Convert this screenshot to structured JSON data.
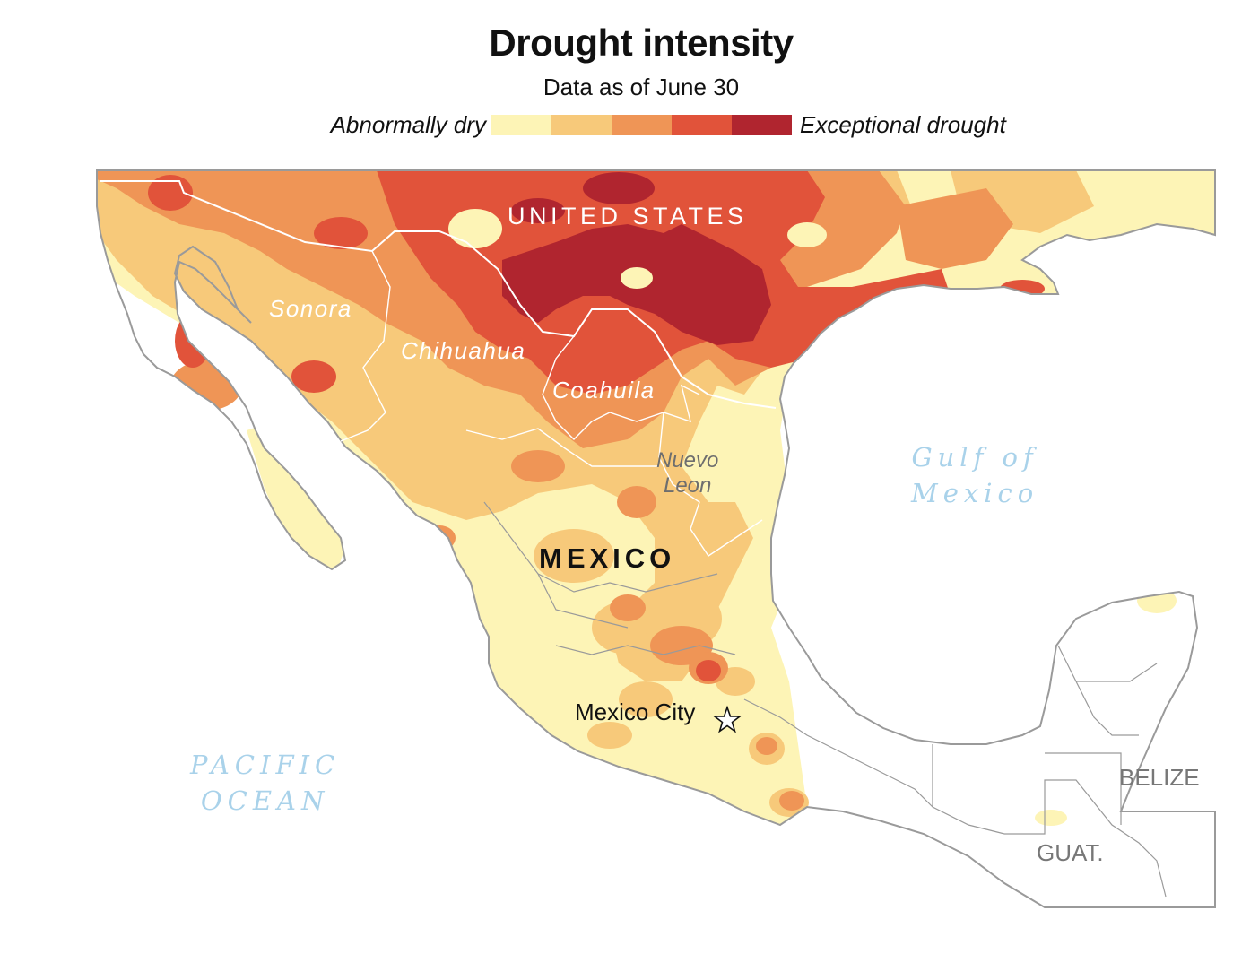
{
  "header": {
    "title": "Drought intensity",
    "subtitle": "Data as of June 30"
  },
  "legend": {
    "low_label": "Abnormally dry",
    "high_label": "Exceptional drought",
    "colors": [
      "#fdf4b6",
      "#f7c97a",
      "#ef9556",
      "#e1533a",
      "#b0252f"
    ]
  },
  "map": {
    "labels": {
      "us": "UNITED STATES",
      "mexico": "MEXICO",
      "sonora": "Sonora",
      "chihuahua": "Chihuahua",
      "coahuila": "Coahuila",
      "nuevo_leon_1": "Nuevo",
      "nuevo_leon_2": "Leon",
      "gulf_1": "Gulf of",
      "gulf_2": "Mexico",
      "pacific_1": "PACIFIC",
      "pacific_2": "OCEAN",
      "belize": "BELIZE",
      "guatemala": "GUAT.",
      "mexico_city": "Mexico City"
    },
    "marker_icon": "star-icon",
    "colors": {
      "land_nodata": "#ffffff",
      "border": "#9a9a9a",
      "water_label": "#a9d2ea"
    }
  }
}
